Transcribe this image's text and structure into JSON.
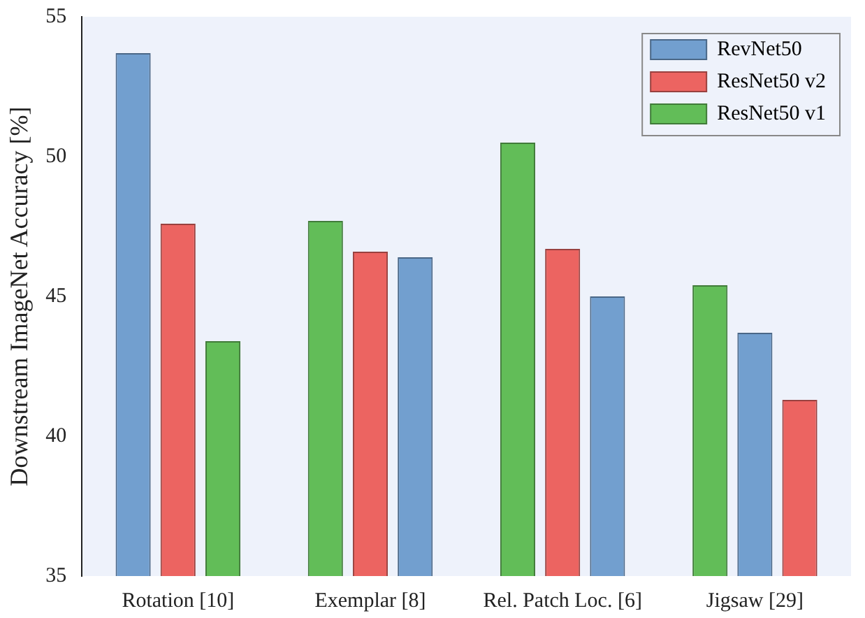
{
  "chart_data": {
    "type": "bar",
    "ylabel": "Downstream ImageNet Accuracy [%]",
    "categories": [
      "Rotation [10]",
      "Exemplar [8]",
      "Rel. Patch Loc. [6]",
      "Jigsaw [29]"
    ],
    "series": [
      {
        "name": "RevNet50",
        "color": "#729fcf",
        "values": [
          53.7,
          46.4,
          45.0,
          43.7
        ]
      },
      {
        "name": "ResNet50 v2",
        "color": "#ec6461",
        "values": [
          47.6,
          46.6,
          46.7,
          41.3
        ]
      },
      {
        "name": "ResNet50 v1",
        "color": "#62bd58",
        "values": [
          43.4,
          47.7,
          50.5,
          45.4
        ]
      }
    ],
    "ylim": [
      35,
      55
    ],
    "yticks": [
      35,
      40,
      45,
      50,
      55
    ],
    "grid": false,
    "legend": "top right"
  }
}
